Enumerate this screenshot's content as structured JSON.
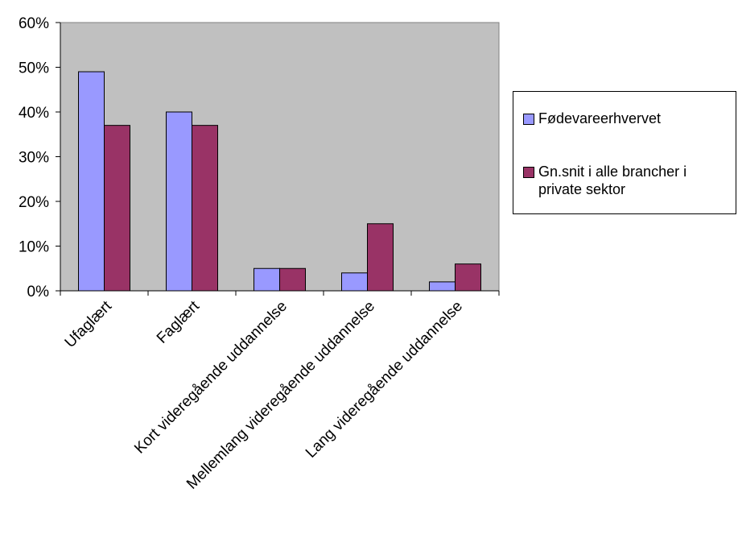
{
  "chart_data": {
    "type": "bar",
    "categories": [
      "Ufaglært",
      "Faglært",
      "Kort videregående uddannelse",
      "Mellemlang videregående uddannelse",
      "Lang videregående uddannelse"
    ],
    "series": [
      {
        "name": "Fødevareerhvervet",
        "values": [
          49,
          40,
          5,
          4,
          2
        ],
        "color": "#9999ff"
      },
      {
        "name": "Gn.snit i alle brancher i\nprivate sektor",
        "values": [
          37,
          37,
          5,
          15,
          6
        ],
        "color": "#993366"
      }
    ],
    "y_ticks": [
      "0%",
      "10%",
      "20%",
      "30%",
      "40%",
      "50%",
      "60%"
    ],
    "ylim": [
      0,
      60
    ],
    "plot_background": "#c0c0c0",
    "grid": false,
    "legend_position": "right",
    "title": "",
    "xlabel": "",
    "ylabel": ""
  }
}
